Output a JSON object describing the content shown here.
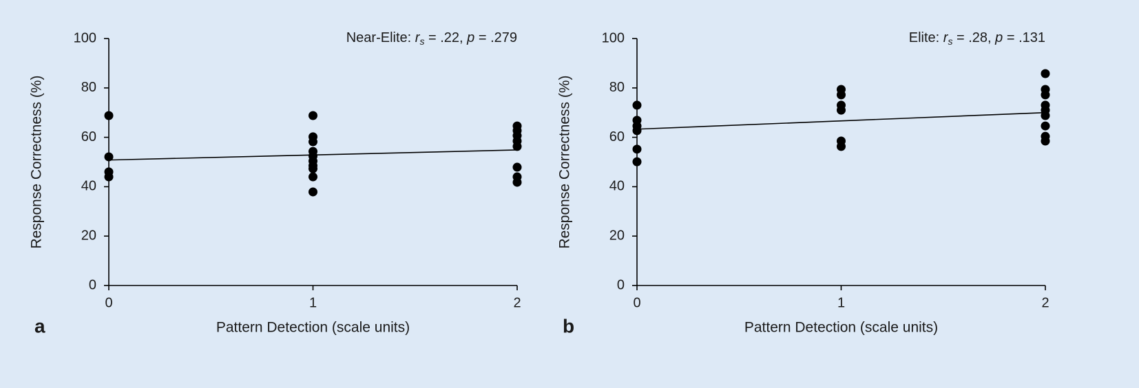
{
  "chart_data": [
    {
      "type": "scatter",
      "panel_label": "a",
      "annotation": [
        {
          "text": "Near-Elite: ",
          "style": "normal"
        },
        {
          "text": "r",
          "style": "italic"
        },
        {
          "text": "s",
          "style": "italic-sub"
        },
        {
          "text": " = .22, ",
          "style": "normal"
        },
        {
          "text": "p",
          "style": "italic"
        },
        {
          "text": " = .279",
          "style": "normal"
        }
      ],
      "x_label": "Pattern Detection (scale units)",
      "y_label": "Response Correctness (%)",
      "xlim": [
        0,
        2
      ],
      "ylim": [
        0,
        100
      ],
      "xticks": [
        0,
        1,
        2
      ],
      "yticks": [
        0,
        20,
        40,
        60,
        80,
        100
      ],
      "color": "#000000",
      "x": [
        0,
        0,
        0,
        0,
        1,
        1,
        1,
        1,
        1,
        1,
        1,
        1,
        1,
        1,
        2,
        2,
        2,
        2,
        2,
        2,
        2,
        2
      ],
      "values": [
        68.8,
        52.1,
        46,
        44,
        68.8,
        60.2,
        58.2,
        54.3,
        52.4,
        50.4,
        48.5,
        47.3,
        44,
        37.9,
        64.6,
        62.7,
        60.7,
        58.5,
        56.3,
        47.9,
        44,
        41.8
      ],
      "trendline": {
        "x": [
          0,
          2
        ],
        "values": [
          50.8,
          54.9
        ]
      }
    },
    {
      "type": "scatter",
      "panel_label": "b",
      "annotation": [
        {
          "text": "Elite: ",
          "style": "normal"
        },
        {
          "text": "r",
          "style": "italic"
        },
        {
          "text": "s",
          "style": "italic-sub"
        },
        {
          "text": " = .28, ",
          "style": "normal"
        },
        {
          "text": "p",
          "style": "italic"
        },
        {
          "text": " = .131",
          "style": "normal"
        }
      ],
      "x_label": "Pattern Detection (scale units)",
      "y_label": "Response Correctness (%)",
      "xlim": [
        0,
        2
      ],
      "ylim": [
        0,
        100
      ],
      "xticks": [
        0,
        1,
        2
      ],
      "yticks": [
        0,
        20,
        40,
        60,
        80,
        100
      ],
      "color": "#000000",
      "x": [
        0,
        0,
        0,
        0,
        0,
        0,
        1,
        1,
        1,
        1,
        1,
        1,
        2,
        2,
        2,
        2,
        2,
        2,
        2,
        2,
        2
      ],
      "values": [
        73,
        66.9,
        64.6,
        62.7,
        55.2,
        50.1,
        79.4,
        77.2,
        73,
        71,
        58.5,
        56.3,
        85.8,
        79.4,
        77.2,
        73,
        71,
        68.8,
        64.6,
        60.4,
        58.5
      ],
      "trendline": {
        "x": [
          0,
          2
        ],
        "values": [
          63.3,
          70
        ]
      }
    }
  ]
}
